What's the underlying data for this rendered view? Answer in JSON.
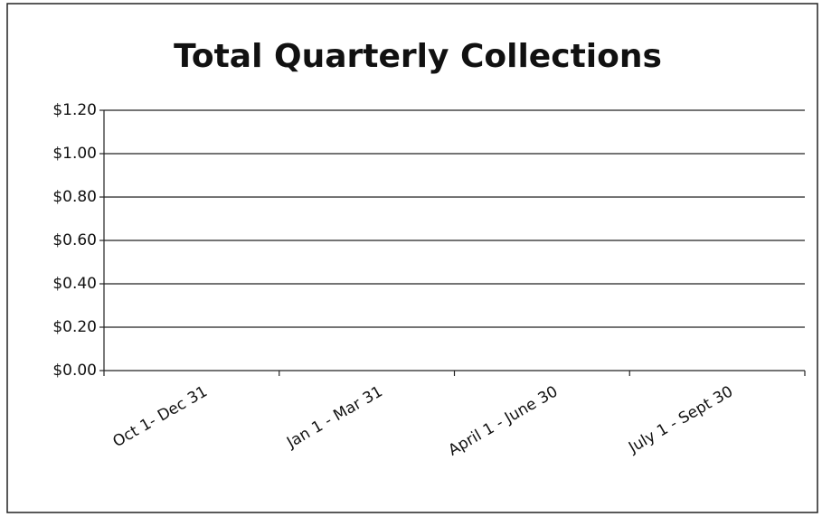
{
  "chart_data": {
    "type": "bar",
    "title": "Total Quarterly Collections",
    "categories": [
      "Oct 1- Dec 31",
      "Jan 1 - Mar 31",
      "April 1 - June 30",
      "July 1 - Sept 30"
    ],
    "values": [
      0,
      0,
      0,
      0
    ],
    "color": "#4f81bd",
    "ylim": [
      0,
      1.2
    ],
    "yticks": [
      {
        "value": 0,
        "label": "$0.00"
      },
      {
        "value": 0.2,
        "label": "$0.20"
      },
      {
        "value": 0.4,
        "label": "$0.40"
      },
      {
        "value": 0.6,
        "label": "$0.60"
      },
      {
        "value": 0.8,
        "label": "$0.80"
      },
      {
        "value": 1.0,
        "label": "$1.00"
      },
      {
        "value": 1.2,
        "label": "$1.20"
      }
    ],
    "grid": true
  }
}
